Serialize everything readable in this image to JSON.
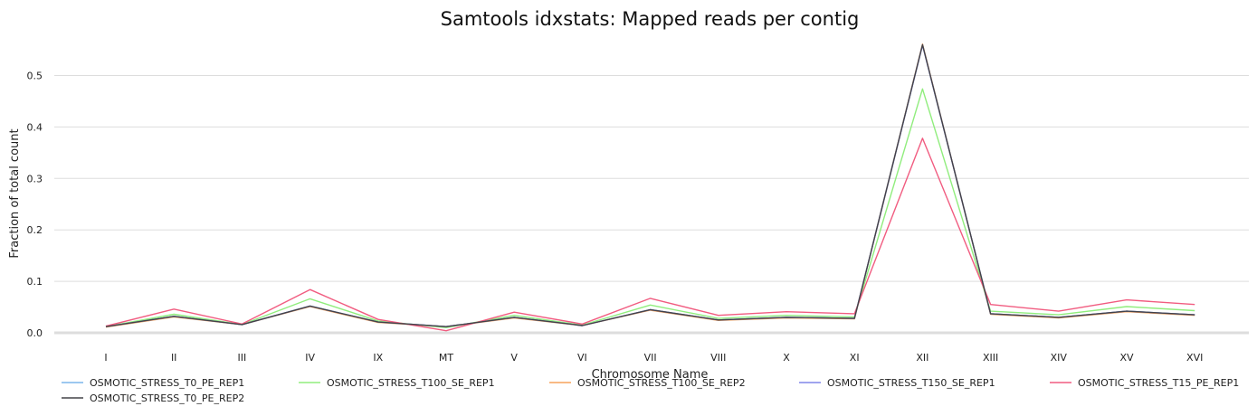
{
  "chart_data": {
    "type": "line",
    "title": "Samtools idxstats: Mapped reads per contig",
    "xlabel": "Chromosome Name",
    "ylabel": "Fraction of total count",
    "ylim": [
      0,
      0.58
    ],
    "yticks": [
      "0.0",
      "0.1",
      "0.2",
      "0.3",
      "0.4",
      "0.5"
    ],
    "grid": "horizontal",
    "legend_position": "bottom",
    "categories": [
      "I",
      "II",
      "III",
      "IV",
      "IX",
      "MT",
      "V",
      "VI",
      "VII",
      "VIII",
      "X",
      "XI",
      "XII",
      "XIII",
      "XIV",
      "XV",
      "XVI"
    ],
    "series": [
      {
        "name": "OSMOTIC_STRESS_T0_PE_REP1",
        "color": "#7cb5ec",
        "values": [
          0.012,
          0.032,
          0.016,
          0.052,
          0.021,
          0.012,
          0.03,
          0.014,
          0.045,
          0.025,
          0.03,
          0.028,
          0.56,
          0.037,
          0.03,
          0.042,
          0.035
        ]
      },
      {
        "name": "OSMOTIC_STRESS_T100_SE_REP1",
        "color": "#90ed7d",
        "values": [
          0.012,
          0.036,
          0.016,
          0.066,
          0.023,
          0.01,
          0.034,
          0.015,
          0.054,
          0.028,
          0.034,
          0.031,
          0.474,
          0.042,
          0.035,
          0.051,
          0.043
        ]
      },
      {
        "name": "OSMOTIC_STRESS_T100_SE_REP2",
        "color": "#f7a35c",
        "values": [
          0.011,
          0.031,
          0.016,
          0.051,
          0.02,
          0.012,
          0.029,
          0.014,
          0.044,
          0.024,
          0.029,
          0.027,
          0.561,
          0.036,
          0.029,
          0.041,
          0.034
        ]
      },
      {
        "name": "OSMOTIC_STRESS_T150_SE_REP1",
        "color": "#8085e9",
        "values": [
          0.012,
          0.032,
          0.016,
          0.052,
          0.021,
          0.012,
          0.03,
          0.014,
          0.045,
          0.025,
          0.03,
          0.028,
          0.559,
          0.037,
          0.03,
          0.042,
          0.035
        ]
      },
      {
        "name": "OSMOTIC_STRESS_T15_PE_REP1",
        "color": "#f15c80",
        "values": [
          0.013,
          0.046,
          0.017,
          0.084,
          0.026,
          0.004,
          0.04,
          0.017,
          0.067,
          0.034,
          0.041,
          0.037,
          0.378,
          0.055,
          0.042,
          0.064,
          0.055
        ]
      },
      {
        "name": "OSMOTIC_STRESS_T0_PE_REP2",
        "color": "#434348",
        "values": [
          0.012,
          0.032,
          0.016,
          0.052,
          0.021,
          0.012,
          0.03,
          0.014,
          0.045,
          0.025,
          0.03,
          0.028,
          0.56,
          0.037,
          0.03,
          0.042,
          0.035
        ]
      }
    ]
  }
}
